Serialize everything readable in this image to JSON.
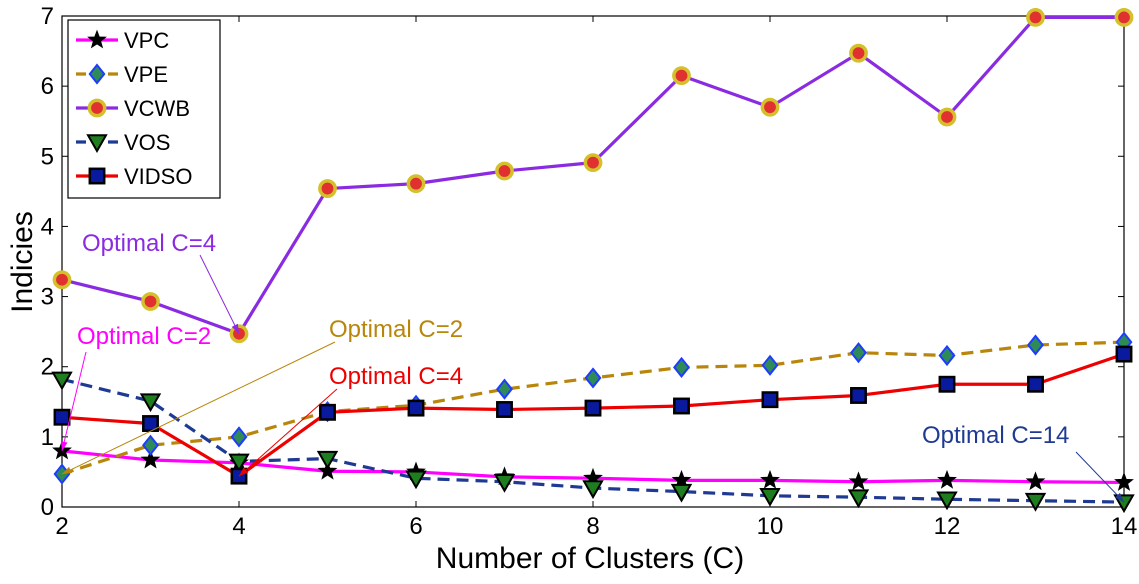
{
  "chart_data": {
    "type": "line",
    "title": "",
    "xlabel": "Number of Clusters (C)",
    "ylabel": "Indicies",
    "xlim": [
      2,
      14
    ],
    "ylim": [
      0,
      7
    ],
    "grid": false,
    "legend_position": "top-left",
    "x": [
      2,
      3,
      4,
      5,
      6,
      7,
      8,
      9,
      10,
      11,
      12,
      13,
      14
    ],
    "xticks": [
      "2",
      "4",
      "6",
      "8",
      "10",
      "12",
      "14"
    ],
    "yticks": [
      "0",
      "1",
      "2",
      "3",
      "4",
      "5",
      "6",
      "7"
    ],
    "series": [
      {
        "name": "VPC",
        "color": "#ff00ff",
        "marker": "star",
        "marker_color": "#000000",
        "dash": "solid",
        "values": [
          0.8,
          0.67,
          0.63,
          0.51,
          0.5,
          0.43,
          0.41,
          0.38,
          0.38,
          0.36,
          0.38,
          0.36,
          0.35
        ]
      },
      {
        "name": "VPE",
        "color": "#b8860b",
        "marker": "diamond",
        "marker_color": "#2e8b57",
        "marker_edge": "#1e3cff",
        "dash": "dashed",
        "values": [
          0.47,
          0.88,
          1.0,
          1.36,
          1.45,
          1.68,
          1.84,
          1.99,
          2.02,
          2.2,
          2.16,
          2.31,
          2.35
        ]
      },
      {
        "name": "VCWB",
        "color": "#8a2be2",
        "marker": "circle",
        "marker_color": "#e03030",
        "marker_edge": "#d4c02a",
        "dash": "solid",
        "values": [
          3.24,
          2.93,
          2.47,
          4.54,
          4.61,
          4.79,
          4.91,
          6.15,
          5.7,
          6.47,
          5.56,
          6.98,
          6.98
        ]
      },
      {
        "name": "VOS",
        "color": "#1f3a93",
        "marker": "triangle-down",
        "marker_color": "#1e7d1e",
        "dash": "dashed",
        "values": [
          1.82,
          1.51,
          0.65,
          0.69,
          0.41,
          0.36,
          0.27,
          0.22,
          0.16,
          0.14,
          0.11,
          0.09,
          0.07
        ]
      },
      {
        "name": "VIDSO",
        "color": "#ee0000",
        "marker": "square",
        "marker_color": "#0a1a9e",
        "marker_edge": "#000000",
        "dash": "solid",
        "values": [
          1.28,
          1.19,
          0.44,
          1.35,
          1.41,
          1.39,
          1.41,
          1.44,
          1.53,
          1.59,
          1.75,
          1.75,
          2.18
        ]
      }
    ],
    "annotations": [
      {
        "text": "Optimal C=4",
        "color": "#8a2be2",
        "target": {
          "x": 4,
          "y": 2.47
        }
      },
      {
        "text": "Optimal C=2",
        "color": "#b8860b",
        "target": {
          "x": 2,
          "y": 0.47
        }
      },
      {
        "text": "Optimal C=2",
        "color": "#ff00ff",
        "target": {
          "x": 2,
          "y": 0.8
        }
      },
      {
        "text": "Optimal C=4",
        "color": "#ee0000",
        "target": {
          "x": 4,
          "y": 0.44
        }
      },
      {
        "text": "Optimal C=14",
        "color": "#1f3a93",
        "target": {
          "x": 14,
          "y": 0.07
        }
      }
    ]
  }
}
